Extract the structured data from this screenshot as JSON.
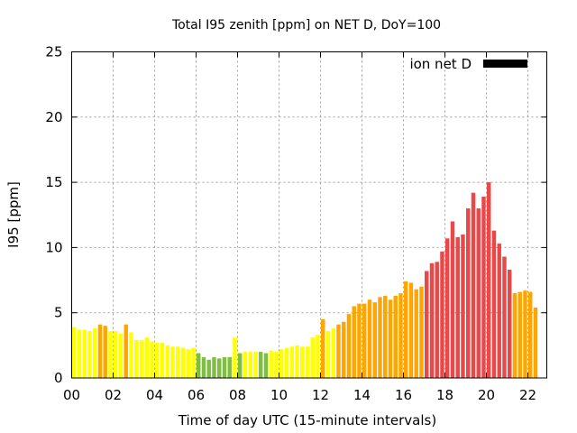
{
  "chart_data": {
    "type": "bar",
    "title": "Total I95 zenith [ppm] on NET D, DoY=100",
    "xlabel": "Time of day UTC (15-minute intervals)",
    "ylabel": "I95 [ppm]",
    "ylim": [
      0,
      25
    ],
    "xlim_hours": [
      0,
      22.85
    ],
    "yticks": [
      "0",
      "5",
      "10",
      "15",
      "20",
      "25"
    ],
    "xticks": [
      "00",
      "02",
      "04",
      "06",
      "08",
      "10",
      "12",
      "14",
      "16",
      "18",
      "20",
      "22"
    ],
    "grid": true,
    "legend": {
      "label": "ion net D",
      "position": "top-right",
      "color": "#000000"
    },
    "interval_minutes": 15,
    "color_scale": {
      "green": "#7fbf3f",
      "yellow": "#ffff00",
      "orange": "#ffa500",
      "red": "#e84848"
    },
    "values": [
      3.9,
      3.7,
      3.7,
      3.6,
      3.8,
      4.1,
      4.0,
      3.6,
      3.6,
      3.4,
      4.1,
      3.5,
      2.9,
      2.9,
      3.1,
      2.8,
      2.7,
      2.7,
      2.5,
      2.4,
      2.4,
      2.3,
      2.2,
      2.3,
      1.9,
      1.6,
      1.4,
      1.6,
      1.5,
      1.6,
      1.6,
      3.1,
      1.9,
      2.0,
      2.0,
      2.0,
      2.0,
      1.9,
      2.1,
      2.0,
      2.2,
      2.3,
      2.4,
      2.5,
      2.4,
      2.4,
      3.1,
      3.3,
      4.5,
      3.6,
      3.8,
      4.1,
      4.3,
      4.9,
      5.5,
      5.7,
      5.7,
      6.0,
      5.8,
      6.2,
      6.3,
      6.0,
      6.3,
      6.5,
      7.4,
      7.3,
      6.8,
      7.0,
      8.2,
      8.8,
      8.9,
      9.7,
      10.7,
      12.0,
      10.8,
      11.0,
      13.0,
      14.2,
      13.0,
      13.9,
      15.0,
      11.3,
      10.3,
      9.3,
      8.3,
      6.5,
      6.6,
      6.7,
      6.6,
      5.4
    ],
    "colors": [
      "Y",
      "Y",
      "Y",
      "Y",
      "Y",
      "O",
      "O",
      "Y",
      "Y",
      "Y",
      "O",
      "Y",
      "Y",
      "Y",
      "Y",
      "Y",
      "Y",
      "Y",
      "Y",
      "Y",
      "Y",
      "Y",
      "Y",
      "Y",
      "G",
      "G",
      "G",
      "G",
      "G",
      "G",
      "G",
      "Y",
      "G",
      "Y",
      "Y",
      "Y",
      "G",
      "G",
      "Y",
      "Y",
      "Y",
      "Y",
      "Y",
      "Y",
      "Y",
      "Y",
      "Y",
      "Y",
      "O",
      "Y",
      "Y",
      "O",
      "O",
      "O",
      "O",
      "O",
      "O",
      "O",
      "O",
      "O",
      "O",
      "O",
      "O",
      "O",
      "O",
      "O",
      "O",
      "O",
      "R",
      "R",
      "R",
      "R",
      "R",
      "R",
      "R",
      "R",
      "R",
      "R",
      "R",
      "R",
      "R",
      "R",
      "R",
      "R",
      "R",
      "O",
      "O",
      "O",
      "O",
      "O"
    ]
  }
}
